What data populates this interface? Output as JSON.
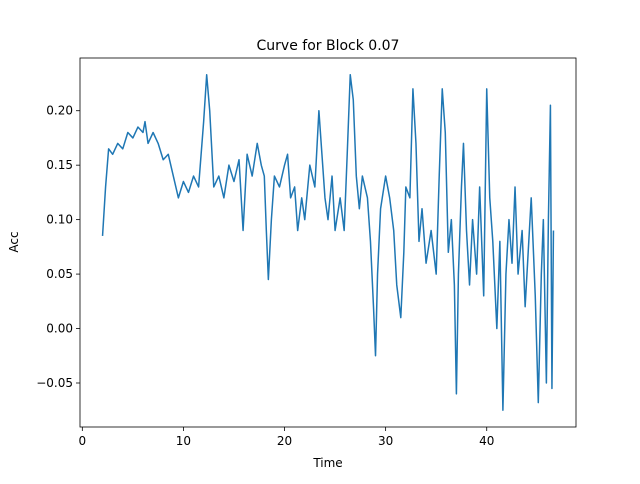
{
  "chart_data": {
    "type": "line",
    "title": "Curve for Block 0.07",
    "x_label": "Time",
    "y_label": "Acc",
    "x": [
      2.0,
      2.3,
      2.6,
      3.0,
      3.5,
      4.0,
      4.5,
      5.0,
      5.5,
      6.0,
      6.2,
      6.5,
      7.0,
      7.5,
      8.0,
      8.5,
      9.0,
      9.5,
      10.0,
      10.5,
      11.0,
      11.5,
      12.0,
      12.3,
      12.6,
      13.0,
      13.5,
      14.0,
      14.5,
      15.0,
      15.5,
      15.9,
      16.3,
      16.8,
      17.3,
      17.7,
      18.0,
      18.2,
      18.4,
      18.7,
      19.0,
      19.5,
      20.0,
      20.3,
      20.6,
      21.0,
      21.3,
      21.7,
      22.0,
      22.5,
      23.0,
      23.4,
      23.7,
      24.0,
      24.3,
      24.7,
      25.0,
      25.5,
      25.9,
      26.2,
      26.5,
      26.8,
      27.1,
      27.4,
      27.7,
      28.2,
      28.5,
      28.8,
      29.0,
      29.2,
      29.5,
      30.0,
      30.4,
      30.8,
      31.1,
      31.5,
      31.8,
      32.0,
      32.4,
      32.7,
      33.0,
      33.3,
      33.6,
      34.0,
      34.5,
      35.0,
      35.3,
      35.6,
      35.9,
      36.2,
      36.5,
      36.8,
      37.0,
      37.2,
      37.5,
      37.7,
      38.0,
      38.3,
      38.6,
      39.0,
      39.3,
      39.7,
      40.0,
      40.3,
      40.6,
      41.0,
      41.3,
      41.6,
      41.9,
      42.2,
      42.5,
      42.8,
      43.1,
      43.5,
      43.8,
      44.1,
      44.4,
      44.8,
      45.1,
      45.4,
      45.6,
      45.9,
      46.1,
      46.3,
      46.45,
      46.6
    ],
    "series": [
      {
        "name": "Acc",
        "color": "#1f77b4",
        "values": [
          0.085,
          0.13,
          0.165,
          0.16,
          0.17,
          0.165,
          0.18,
          0.175,
          0.185,
          0.18,
          0.19,
          0.17,
          0.18,
          0.17,
          0.155,
          0.16,
          0.14,
          0.12,
          0.135,
          0.125,
          0.14,
          0.13,
          0.19,
          0.233,
          0.2,
          0.13,
          0.14,
          0.12,
          0.15,
          0.135,
          0.155,
          0.09,
          0.16,
          0.14,
          0.17,
          0.15,
          0.14,
          0.09,
          0.045,
          0.1,
          0.14,
          0.13,
          0.15,
          0.16,
          0.12,
          0.13,
          0.09,
          0.12,
          0.1,
          0.15,
          0.13,
          0.2,
          0.16,
          0.12,
          0.1,
          0.14,
          0.09,
          0.12,
          0.09,
          0.16,
          0.233,
          0.21,
          0.14,
          0.11,
          0.14,
          0.12,
          0.08,
          0.02,
          -0.025,
          0.05,
          0.11,
          0.14,
          0.12,
          0.09,
          0.04,
          0.01,
          0.07,
          0.13,
          0.12,
          0.22,
          0.17,
          0.08,
          0.11,
          0.06,
          0.09,
          0.05,
          0.14,
          0.22,
          0.18,
          0.07,
          0.1,
          0.04,
          -0.06,
          0.05,
          0.13,
          0.17,
          0.09,
          0.04,
          0.1,
          0.05,
          0.13,
          0.03,
          0.22,
          0.12,
          0.08,
          0.0,
          0.08,
          -0.075,
          0.05,
          0.1,
          0.06,
          0.13,
          0.05,
          0.09,
          0.02,
          0.07,
          0.12,
          0.03,
          -0.068,
          0.05,
          0.1,
          -0.05,
          0.1,
          0.205,
          -0.055,
          0.09
        ]
      }
    ],
    "xlim": [
      -0.23,
      48.83
    ],
    "ylim": [
      -0.0904,
      0.2484
    ],
    "xticks": [
      0,
      10,
      20,
      30,
      40
    ],
    "yticks": [
      {
        "value": -0.05,
        "label": "−0.05"
      },
      {
        "value": 0,
        "label": "0.00"
      },
      {
        "value": 0.05,
        "label": "0.05"
      },
      {
        "value": 0.1,
        "label": "0.10"
      },
      {
        "value": 0.15,
        "label": "0.15"
      },
      {
        "value": 0.2,
        "label": "0.20"
      }
    ],
    "grid": false
  }
}
